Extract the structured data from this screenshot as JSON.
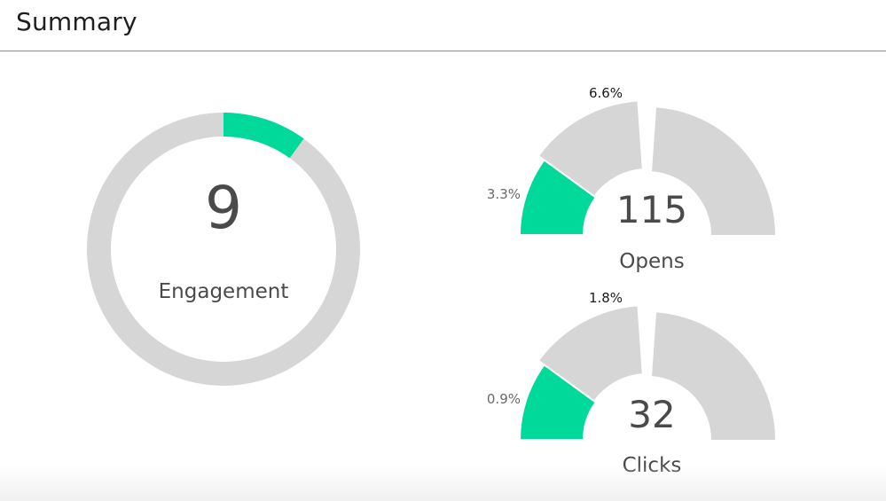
{
  "header": {
    "title": "Summary"
  },
  "colors": {
    "accent": "#00d99a",
    "track": "#d6d6d6",
    "rule": "#e8732c"
  },
  "chart_data": [
    {
      "type": "pie",
      "value": "9",
      "label": "Engagement",
      "segments": [
        {
          "fraction": 0.1,
          "color": "#00d99a"
        },
        {
          "fraction": 0.9,
          "color": "#d6d6d6"
        }
      ]
    },
    {
      "type": "gauge",
      "value": "115",
      "label": "Opens",
      "segments": [
        {
          "fraction": 0.033,
          "label": "3.3%",
          "color": "#00d99a"
        },
        {
          "fraction": 0.066,
          "label": "6.6%",
          "color": "#d6d6d6"
        }
      ]
    },
    {
      "type": "gauge",
      "value": "32",
      "label": "Clicks",
      "segments": [
        {
          "fraction": 0.009,
          "label": "0.9%",
          "color": "#00d99a"
        },
        {
          "fraction": 0.018,
          "label": "1.8%",
          "color": "#d6d6d6"
        }
      ]
    }
  ]
}
